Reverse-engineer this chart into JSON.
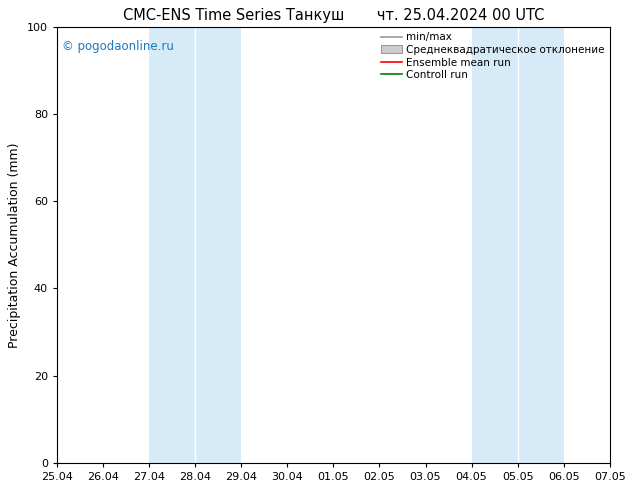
{
  "title": "CMC-ENS Time Series Танкуш       чт. 25.04.2024 00 UTC",
  "ylabel": "Precipitation Accumulation (mm)",
  "ylim": [
    0,
    100
  ],
  "yticks": [
    0,
    20,
    40,
    60,
    80,
    100
  ],
  "xtick_labels": [
    "25.04",
    "26.04",
    "27.04",
    "28.04",
    "29.04",
    "30.04",
    "01.05",
    "02.05",
    "03.05",
    "04.05",
    "05.05",
    "06.05",
    "07.05"
  ],
  "xtick_positions": [
    0,
    1,
    2,
    3,
    4,
    5,
    6,
    7,
    8,
    9,
    10,
    11,
    12
  ],
  "shade_bands": [
    {
      "xmin": 2,
      "xmax": 3,
      "color": "#d6eaf8"
    },
    {
      "xmin": 3,
      "xmax": 4,
      "color": "#d6eaf8"
    },
    {
      "xmin": 9,
      "xmax": 10,
      "color": "#d6eaf8"
    },
    {
      "xmin": 10,
      "xmax": 11,
      "color": "#d6eaf8"
    }
  ],
  "watermark": "© pogodaonline.ru",
  "watermark_color": "#1a7abf",
  "legend_entries": [
    {
      "label": "min/max",
      "type": "hline",
      "color": "#999999"
    },
    {
      "label": "Среднеквадратическое отклонение",
      "type": "rect",
      "color": "#cccccc"
    },
    {
      "label": "Ensemble mean run",
      "type": "line",
      "color": "#ff0000"
    },
    {
      "label": "Controll run",
      "type": "line",
      "color": "#008000"
    }
  ],
  "bg_color": "#ffffff",
  "title_fontsize": 10.5,
  "tick_fontsize": 8,
  "ylabel_fontsize": 9,
  "watermark_fontsize": 8.5,
  "legend_fontsize": 7.5
}
